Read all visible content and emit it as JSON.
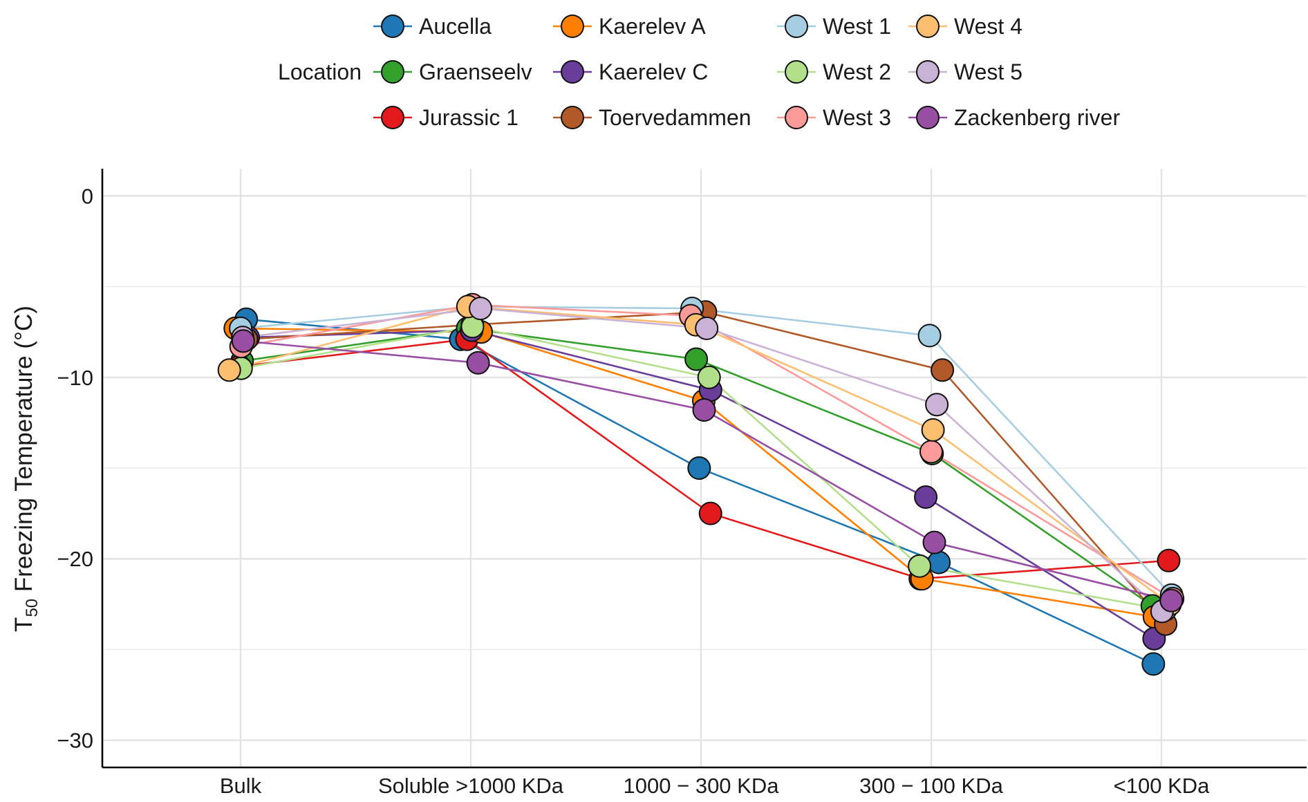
{
  "chart_data": {
    "type": "line",
    "ylabel": "T",
    "ylabel_sub": "50",
    "ylabel_rest": " Freezing Temperature (°C)",
    "xlabel": "",
    "ylim": [
      -31.5,
      1.5
    ],
    "yticks": [
      0,
      -10,
      -20,
      -30
    ],
    "ytick_labels": [
      "0",
      "−10",
      "−20",
      "−30"
    ],
    "categories": [
      "Bulk",
      "Soluble >1000 KDa",
      "1000 − 300 KDa",
      "300 − 100 KDa",
      "<100 KDa"
    ],
    "grid": true,
    "legend_title": "Location",
    "legend_position": "top",
    "series": [
      {
        "name": "Aucella",
        "color": "#1F78B4",
        "values": [
          -6.8,
          -7.9,
          -15.0,
          -20.2,
          -25.8
        ]
      },
      {
        "name": "Graenseelv",
        "color": "#33A02C",
        "values": [
          -9.1,
          -7.3,
          -9.0,
          -14.2,
          -22.6
        ]
      },
      {
        "name": "Jurassic 1",
        "color": "#E31A1C",
        "values": [
          -9.4,
          -7.9,
          -17.5,
          -21.1,
          -20.1
        ]
      },
      {
        "name": "Kaerelev A",
        "color": "#FF7F00",
        "values": [
          -7.3,
          -7.5,
          -11.3,
          -21.1,
          -23.2
        ]
      },
      {
        "name": "Kaerelev C",
        "color": "#6A3D9A",
        "values": [
          -7.8,
          -7.4,
          -10.7,
          -16.6,
          -24.4
        ]
      },
      {
        "name": "Toervedammen",
        "color": "#B15928",
        "values": [
          -7.9,
          -7.1,
          -6.4,
          -9.6,
          -23.6
        ]
      },
      {
        "name": "West 1",
        "color": "#A6CEE3",
        "values": [
          -7.3,
          -6.1,
          -6.2,
          -7.7,
          -22.0
        ]
      },
      {
        "name": "West 2",
        "color": "#B2DF8A",
        "values": [
          -9.5,
          -7.2,
          -10.0,
          -20.4,
          -22.8
        ]
      },
      {
        "name": "West 3",
        "color": "#FB9A99",
        "values": [
          -8.3,
          -6.0,
          -6.6,
          -14.1,
          -22.2
        ]
      },
      {
        "name": "West 4",
        "color": "#FDBF6F",
        "values": [
          -9.6,
          -6.1,
          -7.1,
          -12.9,
          -22.5
        ]
      },
      {
        "name": "West 5",
        "color": "#CAB2D6",
        "values": [
          -7.8,
          -6.2,
          -7.3,
          -11.5,
          -22.9
        ]
      },
      {
        "name": "Zackenberg river",
        "color": "#984EA3",
        "values": [
          -8.0,
          -9.2,
          -11.8,
          -19.1,
          -22.3
        ]
      }
    ]
  }
}
